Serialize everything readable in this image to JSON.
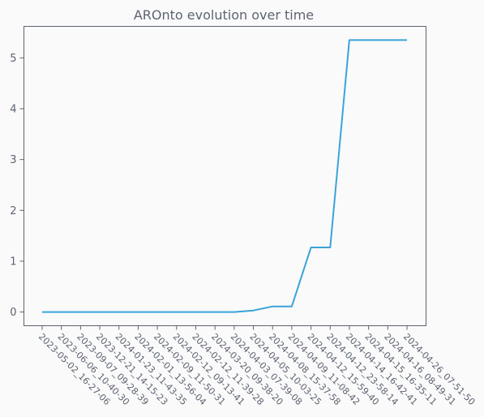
{
  "chart_data": {
    "type": "line",
    "title": "AROnto evolution over time",
    "xlabel": "",
    "ylabel": "",
    "x": [
      "2023-05-02_16-27-06",
      "2023-06-06_10-40-30",
      "2023-09-07_09-28-39",
      "2023-12-21_14-15-23",
      "2024-01-23_11-43-35",
      "2024-02-01_13-56-04",
      "2024-02-09_11-50-31",
      "2024-02-12_09-13-41",
      "2024-02-12_11-39-28",
      "2024-03-20_09-38-20",
      "2024-04-03_07-39-08",
      "2024-04-05_10-03-25",
      "2024-04-08_15-37-58",
      "2024-04-09_11-08-42",
      "2024-04-12_15-59-40",
      "2024-04-12_23-58-14",
      "2024-04-14_16-42-41",
      "2024-04-15_16-35-11",
      "2024-04-16_08-49-31",
      "2024-04-26_07-51-50"
    ],
    "series": [
      {
        "values": [
          0,
          0,
          0,
          0,
          0,
          0,
          0,
          0,
          0,
          0,
          0,
          0.03,
          0.11,
          0.11,
          1.27,
          1.27,
          5.35,
          5.35,
          5.35,
          5.35
        ],
        "color": "#3ba3d8"
      }
    ],
    "yticks": [
      0,
      1,
      2,
      3,
      4,
      5
    ],
    "ylim": [
      -0.27,
      5.62
    ],
    "grid": false
  }
}
